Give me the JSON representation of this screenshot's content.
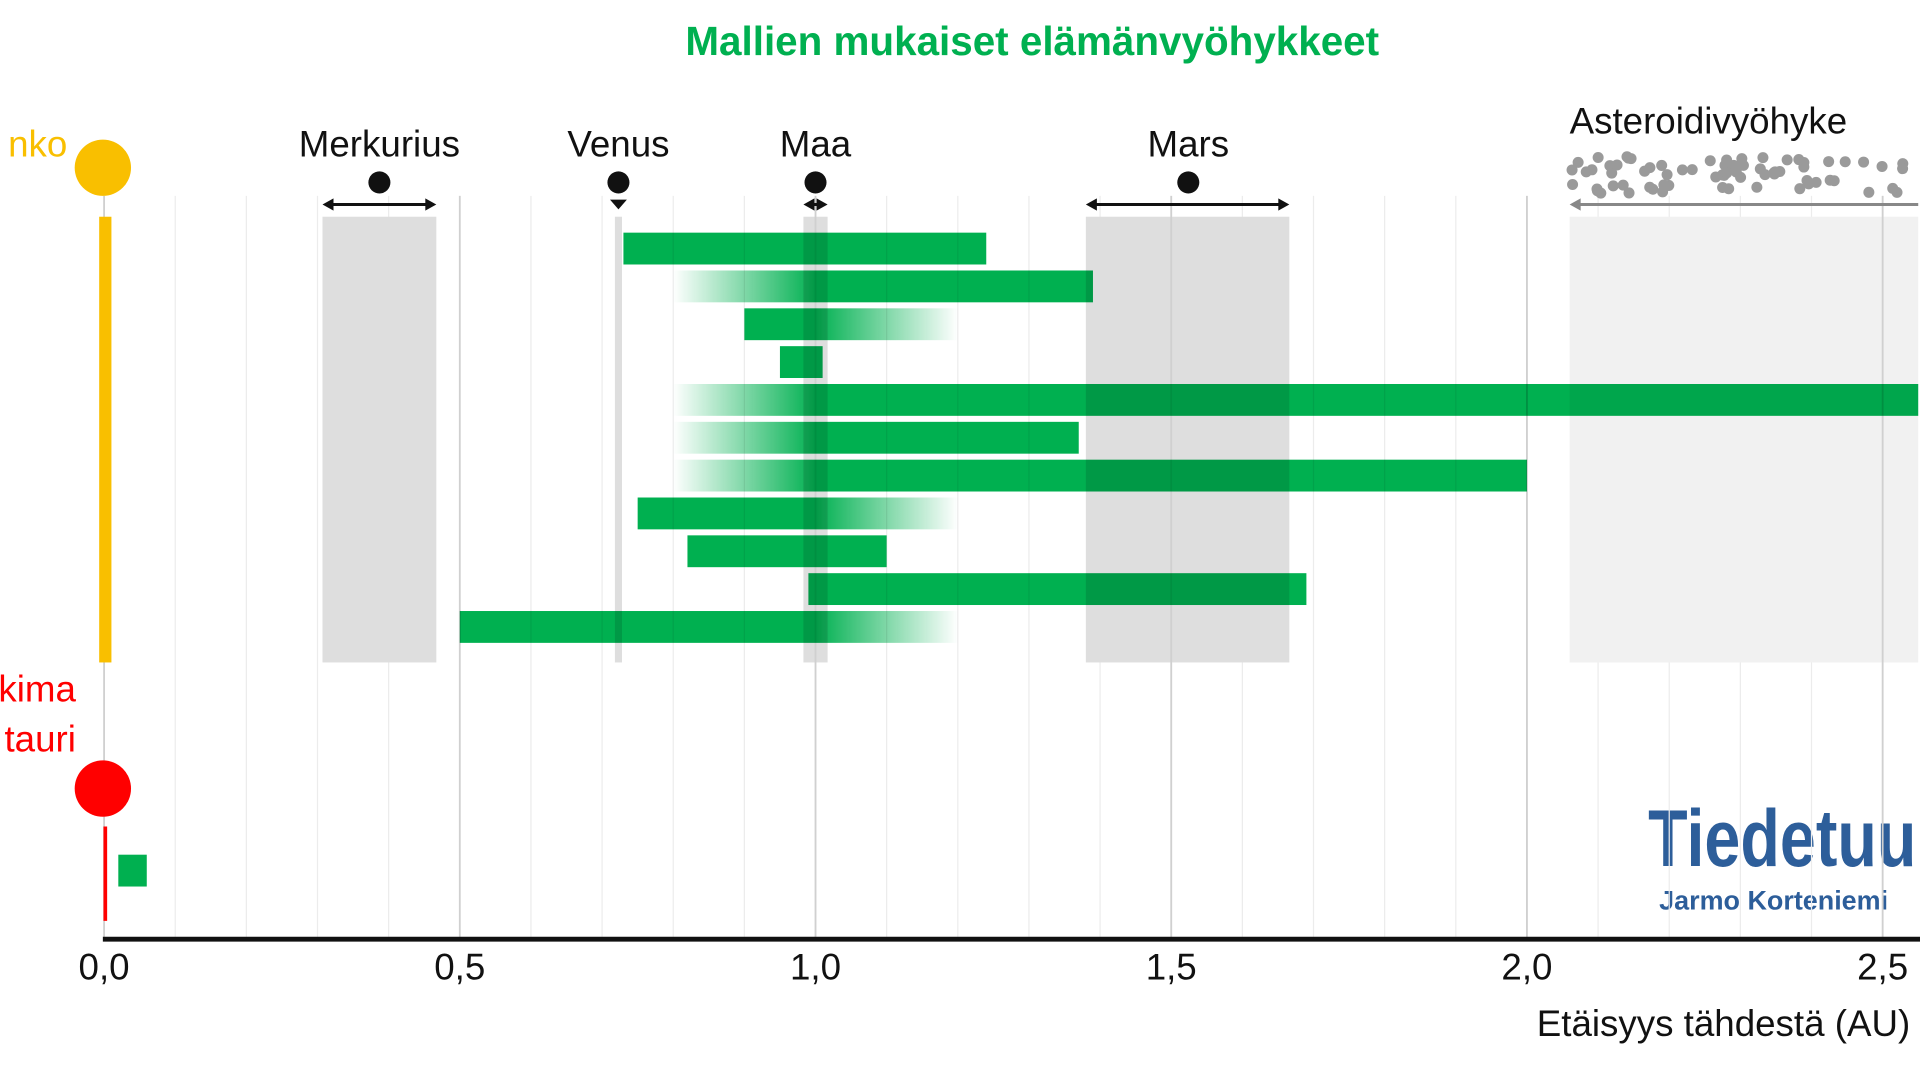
{
  "chart_data": {
    "type": "range",
    "title": "Mallien mukaiset elämänvyöhykkeet",
    "x_label": "Etäisyys tähdestä (AU)",
    "xlim": [
      0,
      2.55
    ],
    "xticks": [
      {
        "value": 0,
        "label": "0,0"
      },
      {
        "value": 0.5,
        "label": "0,5"
      },
      {
        "value": 1,
        "label": "1,0"
      },
      {
        "value": 1.5,
        "label": "1,5"
      },
      {
        "value": 2,
        "label": "2,0"
      },
      {
        "value": 2.5,
        "label": "2,5"
      }
    ],
    "grid": true,
    "bar_color": "#00b050",
    "planets": [
      {
        "name": "Merkurius",
        "min": 0.307,
        "mean": 0.387,
        "max": 0.467
      },
      {
        "name": "Venus",
        "min": 0.718,
        "mean": 0.723,
        "max": 0.728
      },
      {
        "name": "Maa",
        "min": 0.983,
        "mean": 1.0,
        "max": 1.017
      },
      {
        "name": "Mars",
        "min": 1.38,
        "mean": 1.524,
        "max": 1.666
      }
    ],
    "asteroid_belt": {
      "name": "Asteroidivyöhyke",
      "min": 2.06,
      "max": 2.55
    },
    "stars": [
      {
        "label_lines": [
          "nko"
        ],
        "color": "#f9bf00",
        "zones": [
          {
            "start": 0.73,
            "end": 1.24
          },
          {
            "start": 0.8,
            "end": 1.39,
            "fade": "left"
          },
          {
            "start": 0.9,
            "end": 1.2,
            "fade": "right"
          },
          {
            "start": 0.95,
            "end": 1.01
          },
          {
            "start": 0.8,
            "end": 2.55,
            "fade": "left"
          },
          {
            "start": 0.8,
            "end": 1.37,
            "fade": "left"
          },
          {
            "start": 0.8,
            "end": 2.0,
            "fade": "left"
          },
          {
            "start": 0.75,
            "end": 1.2,
            "fade": "right"
          },
          {
            "start": 0.82,
            "end": 1.1
          },
          {
            "start": 0.99,
            "end": 1.69
          },
          {
            "start": 0.5,
            "end": 1.2,
            "fade": "right"
          }
        ]
      },
      {
        "label_lines": [
          "kima",
          "tauri"
        ],
        "color": "#ff0000",
        "zones": [
          {
            "start": 0.02,
            "end": 0.06
          }
        ]
      }
    ],
    "credit": {
      "logo": "Tiedetuu",
      "author": "Jarmo Korteniemi"
    }
  }
}
